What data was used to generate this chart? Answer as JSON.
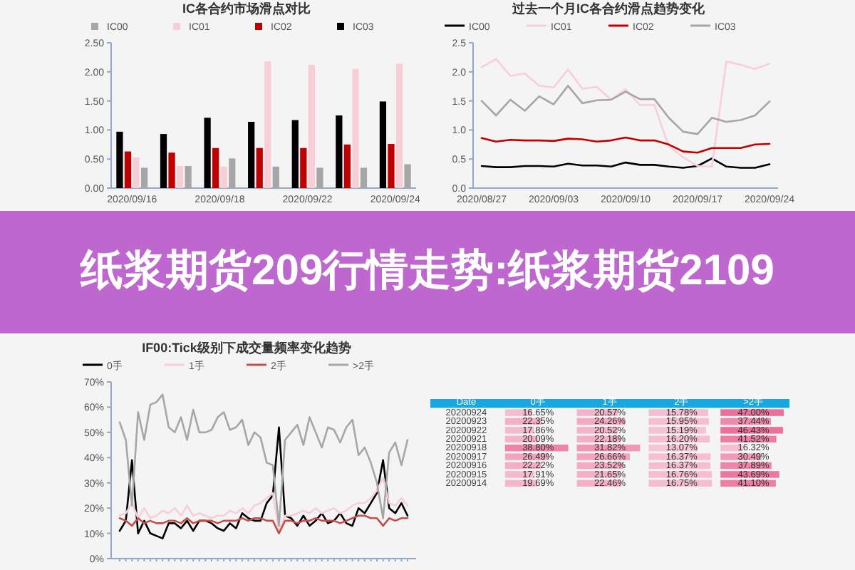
{
  "chart_data": [
    {
      "type": "bar",
      "title": "IC各合约市场滑点对比",
      "categories": [
        "2020/09/16",
        null,
        "2020/09/18",
        null,
        "2020/09/22",
        null,
        "2020/09/24"
      ],
      "legend": "top",
      "ylim": [
        0,
        2.5
      ],
      "yticks": [
        {
          "value": 0,
          "label": "0.00"
        },
        {
          "value": 0.5,
          "label": "0.50"
        },
        {
          "value": 1,
          "label": "1.00"
        },
        {
          "value": 1.5,
          "label": "1.50"
        },
        {
          "value": 2,
          "label": "2.00"
        },
        {
          "value": 2.5,
          "label": "2.50"
        }
      ],
      "series": [
        {
          "name": "IC00",
          "color": "#a6a6a6",
          "values": [
            0.35,
            0.38,
            0.51,
            0.37,
            0.35,
            0.35,
            0.41
          ]
        },
        {
          "name": "IC01",
          "color": "#f8cfd6",
          "values": [
            0.53,
            0.38,
            0.37,
            2.18,
            2.12,
            2.05,
            2.14
          ]
        },
        {
          "name": "IC02",
          "color": "#c00000",
          "values": [
            0.63,
            0.61,
            0.69,
            0.69,
            0.69,
            0.75,
            0.76
          ]
        },
        {
          "name": "IC03",
          "color": "#000000",
          "values": [
            0.97,
            0.93,
            1.21,
            1.14,
            1.17,
            1.25,
            1.49
          ]
        }
      ]
    },
    {
      "type": "line",
      "title": "过去一个月IC各合约滑点趋势变化",
      "categories": [
        "2020/08/27",
        null,
        null,
        null,
        null,
        "2020/09/03",
        null,
        null,
        null,
        null,
        "2020/09/10",
        null,
        null,
        null,
        null,
        "2020/09/17",
        null,
        null,
        null,
        null,
        "2020/09/24"
      ],
      "legend": "top",
      "ylim": [
        0,
        2.5
      ],
      "yticks": [
        {
          "value": 0,
          "label": "0.0"
        },
        0.5,
        {
          "value": 1,
          "label": "1.0"
        },
        1.5,
        {
          "value": 2,
          "label": "2.0"
        },
        2.5
      ],
      "series": [
        {
          "name": "IC00",
          "color": "#000000",
          "values": [
            0.38,
            0.36,
            0.36,
            0.38,
            0.38,
            0.37,
            0.42,
            0.39,
            0.39,
            0.37,
            0.44,
            0.4,
            0.4,
            0.37,
            0.35,
            0.38,
            0.51,
            0.37,
            0.35,
            0.35,
            0.41
          ]
        },
        {
          "name": "IC01",
          "color": "#f8cfd6",
          "values": [
            2.08,
            2.22,
            1.93,
            1.97,
            1.76,
            1.73,
            2.04,
            1.71,
            1.74,
            1.52,
            1.7,
            1.43,
            1.43,
            0.72,
            0.53,
            0.38,
            0.37,
            2.18,
            2.12,
            2.05,
            2.14
          ]
        },
        {
          "name": "IC02",
          "color": "#c00000",
          "values": [
            0.86,
            0.8,
            0.83,
            0.82,
            0.82,
            0.81,
            0.85,
            0.84,
            0.8,
            0.82,
            0.87,
            0.82,
            0.82,
            0.75,
            0.63,
            0.61,
            0.69,
            0.69,
            0.69,
            0.75,
            0.76
          ]
        },
        {
          "name": "IC03",
          "color": "#a6a6a6",
          "values": [
            1.5,
            1.25,
            1.52,
            1.33,
            1.58,
            1.44,
            1.76,
            1.46,
            1.51,
            1.52,
            1.66,
            1.53,
            1.53,
            1.21,
            0.97,
            0.93,
            1.21,
            1.14,
            1.17,
            1.25,
            1.49
          ]
        }
      ]
    },
    {
      "type": "other",
      "title": "纸浆期货209行情走势:纸浆期货2109"
    },
    {
      "type": "line",
      "title": "IF00:Tick级别下成交量频率变化趋势",
      "categories": [
        null,
        null,
        null,
        null,
        null,
        null,
        null,
        null,
        null,
        null,
        null,
        null,
        null,
        null,
        null,
        null,
        null,
        null,
        null,
        null,
        null,
        null,
        null,
        null,
        null,
        null,
        null,
        null,
        null,
        null,
        null,
        null,
        null,
        null,
        null,
        null,
        null,
        null,
        null,
        null,
        null,
        null,
        null,
        null,
        null,
        null,
        null,
        null
      ],
      "legend": "top",
      "ylim": [
        0,
        70
      ],
      "yticks": [
        {
          "value": 0,
          "label": "0%"
        },
        {
          "value": 10,
          "label": "10%"
        },
        {
          "value": 20,
          "label": "20%"
        },
        {
          "value": 30,
          "label": "30%"
        },
        {
          "value": 40,
          "label": "40%"
        },
        {
          "value": 50,
          "label": "50%"
        },
        {
          "value": 60,
          "label": "60%"
        },
        {
          "value": 70,
          "label": "70%"
        }
      ],
      "series": [
        {
          "name": "0手",
          "color": "#000000",
          "values": [
            11,
            15,
            39,
            10,
            15,
            10,
            9,
            8,
            14,
            14,
            12,
            15,
            11,
            15,
            15,
            14,
            12,
            11,
            14,
            12,
            18,
            16,
            15,
            15,
            22,
            25,
            52,
            17,
            16,
            13,
            17,
            13,
            15,
            18,
            14,
            15,
            18,
            14,
            13,
            20,
            18,
            22,
            26,
            39,
            20,
            18,
            22,
            17
          ]
        },
        {
          "name": "1手",
          "color": "#f8cfd6",
          "values": [
            17,
            18,
            22,
            16,
            20,
            16,
            17,
            19,
            18,
            20,
            17,
            21,
            17,
            18,
            17,
            16,
            17,
            17,
            19,
            18,
            20,
            18,
            21,
            22,
            24,
            26,
            11,
            17,
            17,
            18,
            19,
            18,
            20,
            18,
            19,
            20,
            18,
            19,
            21,
            22,
            22,
            24,
            27,
            32,
            22,
            21,
            24,
            21
          ]
        },
        {
          "name": "2手",
          "color": "#c0504d",
          "values": [
            16,
            15,
            13,
            16,
            14,
            15,
            14,
            14,
            15,
            15,
            14,
            16,
            14,
            15,
            15,
            15,
            14,
            15,
            15,
            15,
            16,
            15,
            16,
            16,
            15,
            15,
            10,
            15,
            15,
            14,
            15,
            15,
            16,
            15,
            15,
            15,
            14,
            15,
            16,
            17,
            17,
            16,
            16,
            13,
            16,
            15,
            16,
            16
          ]
        },
        {
          "name": ">2手",
          "color": "#a6a6a6",
          "values": [
            54,
            47,
            21,
            58,
            47,
            61,
            62,
            65,
            52,
            50,
            56,
            47,
            59,
            50,
            50,
            51,
            56,
            58,
            51,
            52,
            55,
            45,
            50,
            48,
            38,
            37,
            13,
            47,
            50,
            53,
            45,
            56,
            50,
            44,
            52,
            51,
            46,
            52,
            55,
            41,
            44,
            38,
            30,
            16,
            42,
            46,
            37,
            47
          ]
        }
      ]
    },
    {
      "type": "heatmap",
      "ylabel": "Date",
      "color": "#ec6f98",
      "categories": [
        "0手",
        "1手",
        "2手",
        ">2手"
      ],
      "y_categories": [
        "20200924",
        "20200923",
        "20200922",
        "20200921",
        "20200918",
        "20200917",
        "20200916",
        "20200915",
        "20200914"
      ],
      "cells": [
        [
          16.65,
          20.57,
          15.78,
          47.0
        ],
        [
          22.35,
          24.26,
          15.95,
          37.44
        ],
        [
          17.86,
          20.52,
          15.19,
          46.43
        ],
        [
          20.09,
          22.18,
          16.2,
          41.52
        ],
        [
          38.8,
          31.82,
          13.07,
          16.32
        ],
        [
          26.49,
          26.66,
          16.37,
          30.49
        ],
        [
          22.22,
          23.52,
          16.37,
          37.89
        ],
        [
          17.91,
          21.65,
          16.76,
          43.69
        ],
        [
          19.69,
          22.46,
          16.75,
          41.1
        ]
      ],
      "cell_labels": [
        [
          "16.65%",
          "20.57%",
          "15.78%",
          "47.00%"
        ],
        [
          "22.35%",
          "24.26%",
          "15.95%",
          "37.44%"
        ],
        [
          "17.86%",
          "20.52%",
          "15.19%",
          "46.43%"
        ],
        [
          "20.09%",
          "22.18%",
          "16.20%",
          "41.52%"
        ],
        [
          "38.80%",
          "31.82%",
          "13.07%",
          "16.32%"
        ],
        [
          "26.49%",
          "26.66%",
          "16.37%",
          "30.49%"
        ],
        [
          "22.22%",
          "23.52%",
          "16.37%",
          "37.89%"
        ],
        [
          "17.91%",
          "21.65%",
          "16.76%",
          "43.69%"
        ],
        [
          "19.69%",
          "22.46%",
          "16.75%",
          "41.10%"
        ]
      ]
    }
  ]
}
